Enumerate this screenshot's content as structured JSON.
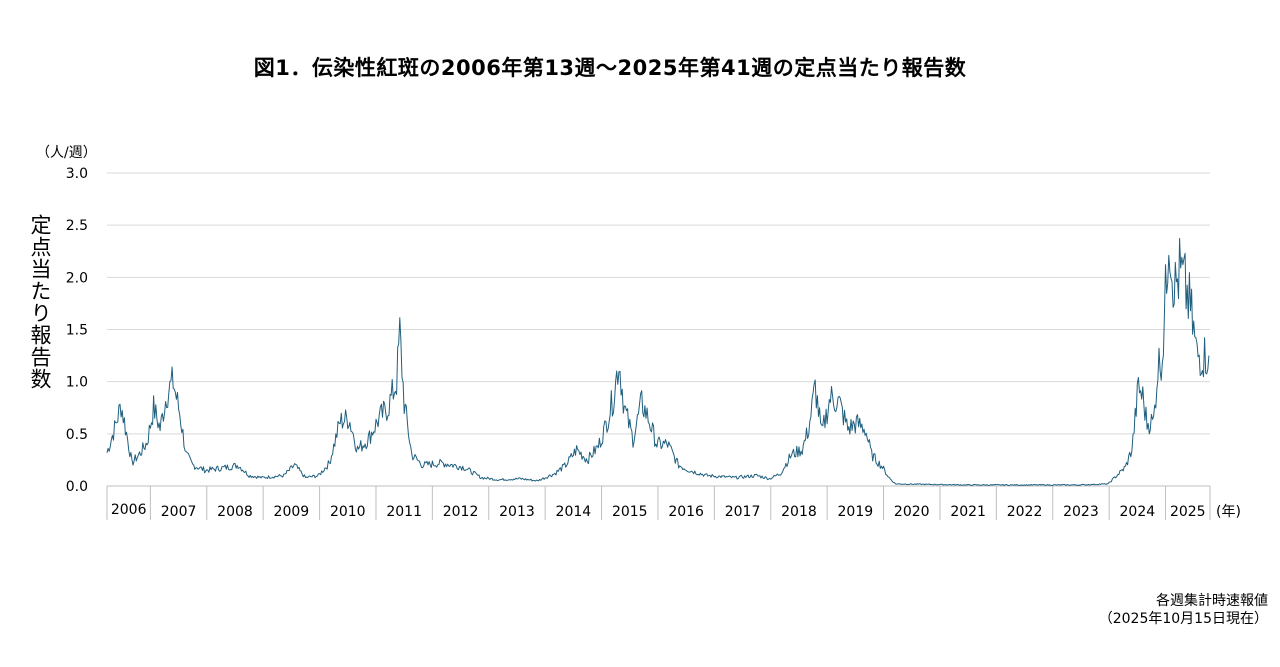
{
  "chart_data": {
    "type": "line",
    "title": "図1．伝染性紅斑の2006年第13週〜2025年第41週の定点当たり報告数",
    "ylabel": "定点当たり報告数",
    "y_unit": "（人/週）",
    "x_unit": "(年)",
    "ylim": [
      0,
      3.0
    ],
    "y_ticks": [
      "0.0",
      "0.5",
      "1.0",
      "1.5",
      "2.0",
      "2.5",
      "3.0"
    ],
    "x_categories": [
      "2006",
      "2007",
      "2008",
      "2009",
      "2010",
      "2011",
      "2012",
      "2013",
      "2014",
      "2015",
      "2016",
      "2017",
      "2018",
      "2019",
      "2020",
      "2021",
      "2022",
      "2023",
      "2024",
      "2025"
    ],
    "grid": true,
    "line_color": "#1f5f7f",
    "series": [
      {
        "x_start": "2006-W13",
        "x_end": "2025-W41",
        "anchors": [
          [
            "2006-W13",
            0.32
          ],
          [
            "2006-W20",
            0.55
          ],
          [
            "2006-W26",
            0.78
          ],
          [
            "2006-W32",
            0.45
          ],
          [
            "2006-W36",
            0.22
          ],
          [
            "2006-W44",
            0.32
          ],
          [
            "2006-W50",
            0.42
          ],
          [
            "2007-W04",
            0.75
          ],
          [
            "2007-W10",
            0.55
          ],
          [
            "2007-W16",
            0.88
          ],
          [
            "2007-W22",
            1.0
          ],
          [
            "2007-W28",
            0.7
          ],
          [
            "2007-W34",
            0.3
          ],
          [
            "2007-W40",
            0.2
          ],
          [
            "2007-W52",
            0.15
          ],
          [
            "2008-W20",
            0.18
          ],
          [
            "2008-W30",
            0.2
          ],
          [
            "2008-W40",
            0.1
          ],
          [
            "2008-W52",
            0.08
          ],
          [
            "2009-W20",
            0.1
          ],
          [
            "2009-W30",
            0.2
          ],
          [
            "2009-W40",
            0.08
          ],
          [
            "2009-W52",
            0.1
          ],
          [
            "2010-W10",
            0.22
          ],
          [
            "2010-W20",
            0.62
          ],
          [
            "2010-W28",
            0.65
          ],
          [
            "2010-W36",
            0.35
          ],
          [
            "2010-W46",
            0.45
          ],
          [
            "2011-W04",
            0.65
          ],
          [
            "2011-W12",
            0.75
          ],
          [
            "2011-W20",
            1.0
          ],
          [
            "2011-W23",
            1.46
          ],
          [
            "2011-W27",
            0.8
          ],
          [
            "2011-W34",
            0.3
          ],
          [
            "2011-W44",
            0.2
          ],
          [
            "2012-W10",
            0.22
          ],
          [
            "2012-W30",
            0.18
          ],
          [
            "2012-W46",
            0.08
          ],
          [
            "2013-W10",
            0.06
          ],
          [
            "2013-W30",
            0.07
          ],
          [
            "2013-W46",
            0.05
          ],
          [
            "2014-W10",
            0.12
          ],
          [
            "2014-W20",
            0.2
          ],
          [
            "2014-W30",
            0.35
          ],
          [
            "2014-W40",
            0.25
          ],
          [
            "2014-W50",
            0.38
          ],
          [
            "2015-W04",
            0.55
          ],
          [
            "2015-W12",
            0.85
          ],
          [
            "2015-W17",
            1.2
          ],
          [
            "2015-W22",
            0.75
          ],
          [
            "2015-W30",
            0.45
          ],
          [
            "2015-W38",
            0.8
          ],
          [
            "2015-W44",
            0.65
          ],
          [
            "2015-W52",
            0.4
          ],
          [
            "2016-W10",
            0.4
          ],
          [
            "2016-W20",
            0.2
          ],
          [
            "2016-W30",
            0.15
          ],
          [
            "2016-W46",
            0.1
          ],
          [
            "2017-W20",
            0.08
          ],
          [
            "2017-W40",
            0.1
          ],
          [
            "2017-W52",
            0.07
          ],
          [
            "2018-W10",
            0.12
          ],
          [
            "2018-W20",
            0.3
          ],
          [
            "2018-W30",
            0.35
          ],
          [
            "2018-W36",
            0.55
          ],
          [
            "2018-W42",
            0.95
          ],
          [
            "2018-W48",
            0.5
          ],
          [
            "2019-W04",
            0.85
          ],
          [
            "2019-W12",
            0.8
          ],
          [
            "2019-W20",
            0.55
          ],
          [
            "2019-W28",
            0.6
          ],
          [
            "2019-W36",
            0.55
          ],
          [
            "2019-W42",
            0.3
          ],
          [
            "2019-W52",
            0.18
          ],
          [
            "2020-W06",
            0.08
          ],
          [
            "2020-W12",
            0.02
          ],
          [
            "2021-W26",
            0.01
          ],
          [
            "2022-W26",
            0.01
          ],
          [
            "2023-W26",
            0.01
          ],
          [
            "2023-W52",
            0.02
          ],
          [
            "2024-W08",
            0.1
          ],
          [
            "2024-W16",
            0.18
          ],
          [
            "2024-W22",
            0.35
          ],
          [
            "2024-W28",
            0.95
          ],
          [
            "2024-W32",
            0.85
          ],
          [
            "2024-W36",
            0.6
          ],
          [
            "2024-W42",
            0.62
          ],
          [
            "2024-W46",
            1.15
          ],
          [
            "2024-W50",
            1.25
          ],
          [
            "2025-W02",
            2.0
          ],
          [
            "2025-W04",
            2.52
          ],
          [
            "2025-W07",
            2.1
          ],
          [
            "2025-W10",
            1.9
          ],
          [
            "2025-W14",
            2.05
          ],
          [
            "2025-W18",
            1.95
          ],
          [
            "2025-W24",
            1.7
          ],
          [
            "2025-W30",
            1.25
          ],
          [
            "2025-W41",
            1.25
          ]
        ]
      }
    ]
  },
  "note": {
    "line1": "各週集計時速報値",
    "line2": "（2025年10月15日現在）"
  }
}
